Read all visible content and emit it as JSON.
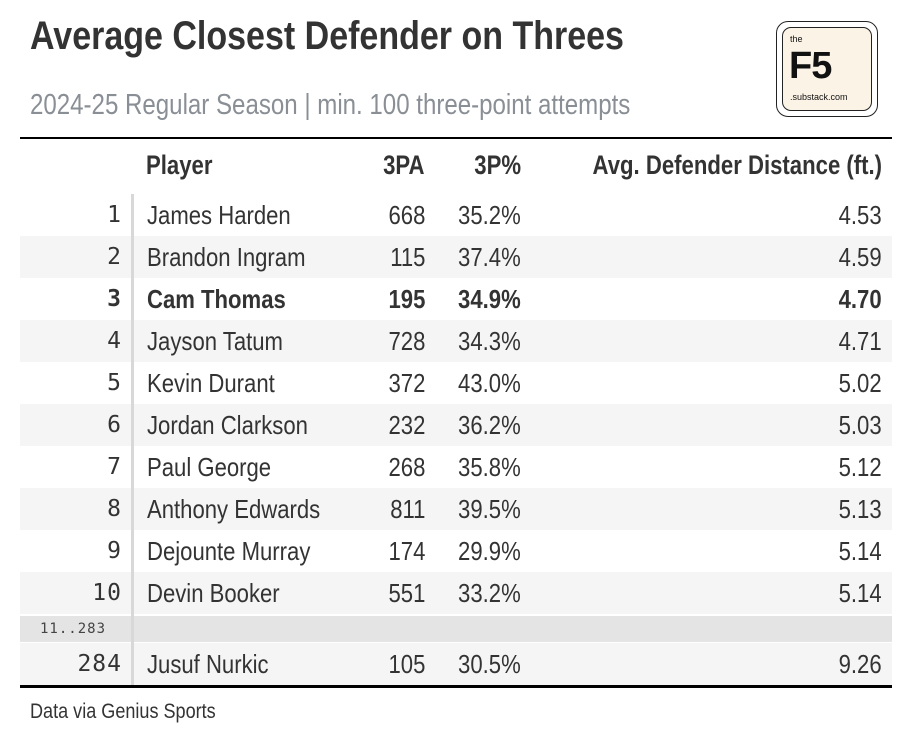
{
  "title": "Average Closest Defender on Threes",
  "subtitle": "2024-25 Regular Season | min. 100 three-point attempts",
  "logo": {
    "small_top": "the",
    "main": "F5",
    "small_bottom": ".substack.com"
  },
  "footer": "Data via Genius Sports",
  "colors": {
    "highlight_row_weight": "bold",
    "shade": "#f5f5f5",
    "separator": "#e4e4e4"
  },
  "chart_data": {
    "type": "table",
    "title": "Average Closest Defender on Threes",
    "subtitle": "2024-25 Regular Season | min. 100 three-point attempts",
    "columns": [
      "",
      "Player",
      "3PA",
      "3P%",
      "Avg. Defender Distance (ft.)"
    ],
    "rows": [
      {
        "rank": "1",
        "player": "James Harden",
        "pa": "668",
        "pct": "35.2%",
        "dist": "4.53"
      },
      {
        "rank": "2",
        "player": "Brandon Ingram",
        "pa": "115",
        "pct": "37.4%",
        "dist": "4.59"
      },
      {
        "rank": "3",
        "player": "Cam Thomas",
        "pa": "195",
        "pct": "34.9%",
        "dist": "4.70",
        "highlight": true
      },
      {
        "rank": "4",
        "player": "Jayson Tatum",
        "pa": "728",
        "pct": "34.3%",
        "dist": "4.71"
      },
      {
        "rank": "5",
        "player": "Kevin Durant",
        "pa": "372",
        "pct": "43.0%",
        "dist": "5.02"
      },
      {
        "rank": "6",
        "player": "Jordan Clarkson",
        "pa": "232",
        "pct": "36.2%",
        "dist": "5.03"
      },
      {
        "rank": "7",
        "player": "Paul George",
        "pa": "268",
        "pct": "35.8%",
        "dist": "5.12"
      },
      {
        "rank": "8",
        "player": "Anthony Edwards",
        "pa": "811",
        "pct": "39.5%",
        "dist": "5.13"
      },
      {
        "rank": "9",
        "player": "Dejounte Murray",
        "pa": "174",
        "pct": "29.9%",
        "dist": "5.14"
      },
      {
        "rank": "10",
        "player": "Devin Booker",
        "pa": "551",
        "pct": "33.2%",
        "dist": "5.14"
      }
    ],
    "separator_label": "11..283",
    "last_row": {
      "rank": "284",
      "player": "Jusuf Nurkic",
      "pa": "105",
      "pct": "30.5%",
      "dist": "9.26"
    },
    "source": "Data via Genius Sports"
  }
}
